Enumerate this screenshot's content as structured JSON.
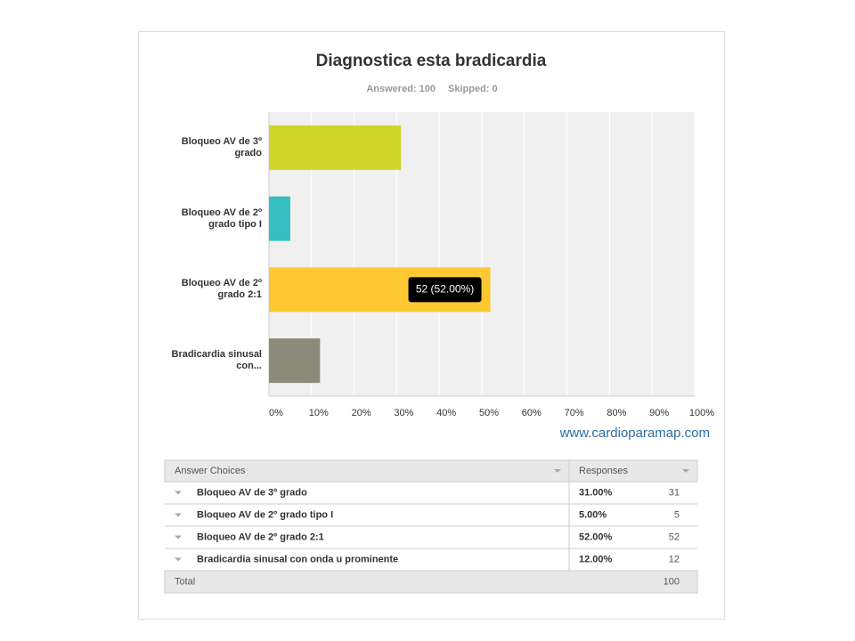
{
  "chart_data": {
    "type": "bar",
    "orientation": "horizontal",
    "title": "Diagnostica esta bradicardia",
    "subtitle": [
      "Answered: 100",
      "Skipped: 0"
    ],
    "categories": [
      "Bloqueo AV de 3º grado",
      "Bloqueo AV de 2º grado tipo I",
      "Bloqueo AV de 2º grado 2:1",
      "Bradicardia sinusal con..."
    ],
    "values": [
      31,
      5,
      52,
      12
    ],
    "value_labels": [
      null,
      null,
      "52 (52.00%)",
      null
    ],
    "colors": [
      "#d0d52a",
      "#35bfc1",
      "#fdc832",
      "#8c8b7a"
    ],
    "xlim": [
      0,
      100
    ],
    "xticks": [
      {
        "value": 0,
        "label": "0%"
      },
      {
        "value": 10,
        "label": "10%"
      },
      {
        "value": 20,
        "label": "20%"
      },
      {
        "value": 30,
        "label": "30%"
      },
      {
        "value": 40,
        "label": "40%"
      },
      {
        "value": 50,
        "label": "50%"
      },
      {
        "value": 60,
        "label": "60%"
      },
      {
        "value": 70,
        "label": "70%"
      },
      {
        "value": 80,
        "label": "80%"
      },
      {
        "value": 90,
        "label": "90%"
      },
      {
        "value": 100,
        "label": "100%"
      }
    ],
    "grid": true
  },
  "watermark": "www.cardioparamap.com",
  "table": {
    "header": [
      "Answer Choices",
      "Responses"
    ],
    "rows": [
      [
        "Bloqueo AV de 3º grado",
        "31.00%",
        31
      ],
      [
        "Bloqueo AV de 2º grado tipo I",
        "5.00%",
        5
      ],
      [
        "Bloqueo AV de 2º grado 2:1",
        "52.00%",
        52
      ],
      [
        "Bradicardia sinusal con onda u prominente",
        "12.00%",
        12
      ]
    ],
    "total": [
      "Total",
      100
    ]
  }
}
